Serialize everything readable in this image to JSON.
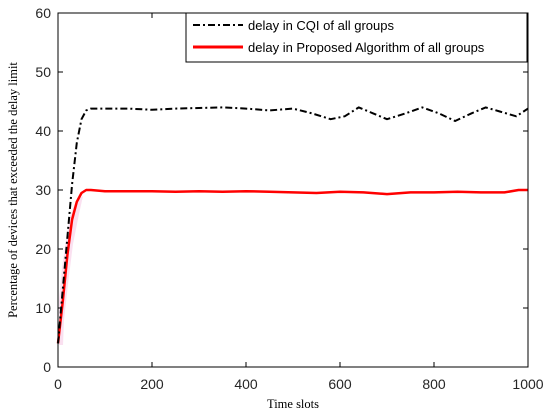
{
  "chart_data": {
    "type": "line",
    "title": "",
    "xlabel": "Time slots",
    "ylabel": "Percentage of devices that exceeded the delay limit",
    "xlim": [
      0,
      1000
    ],
    "ylim": [
      0,
      60
    ],
    "xticks": [
      0,
      200,
      400,
      600,
      800,
      1000
    ],
    "yticks": [
      0,
      10,
      20,
      30,
      40,
      50,
      60
    ],
    "grid": false,
    "legend_position": "top-right",
    "series": [
      {
        "name": "delay in CQI of all groups",
        "color": "#000000",
        "line_style": "dash-dot",
        "x": [
          0,
          10,
          20,
          30,
          40,
          50,
          60,
          70,
          100,
          150,
          200,
          250,
          300,
          350,
          400,
          450,
          500,
          540,
          580,
          610,
          640,
          670,
          700,
          740,
          775,
          810,
          845,
          880,
          910,
          940,
          975,
          1000
        ],
        "y": [
          4,
          13,
          22,
          31,
          38,
          42,
          43.5,
          43.8,
          43.8,
          43.8,
          43.6,
          43.8,
          43.9,
          44,
          43.8,
          43.5,
          43.8,
          43,
          42,
          42.5,
          44,
          43,
          42,
          43,
          44,
          43,
          41.7,
          43,
          44,
          43.3,
          42.5,
          43.8
        ]
      },
      {
        "name": "delay in Proposed Algorithm of all groups",
        "color": "#ff0000",
        "line_style": "solid",
        "x": [
          0,
          10,
          20,
          30,
          40,
          50,
          60,
          70,
          100,
          150,
          200,
          250,
          300,
          350,
          400,
          450,
          500,
          550,
          600,
          650,
          700,
          750,
          800,
          850,
          900,
          950,
          980,
          1000
        ],
        "y": [
          4,
          11,
          19,
          25,
          28,
          29.5,
          30,
          30,
          29.8,
          29.8,
          29.8,
          29.7,
          29.8,
          29.7,
          29.8,
          29.7,
          29.6,
          29.5,
          29.7,
          29.6,
          29.3,
          29.6,
          29.6,
          29.7,
          29.6,
          29.6,
          30,
          30
        ]
      }
    ]
  }
}
